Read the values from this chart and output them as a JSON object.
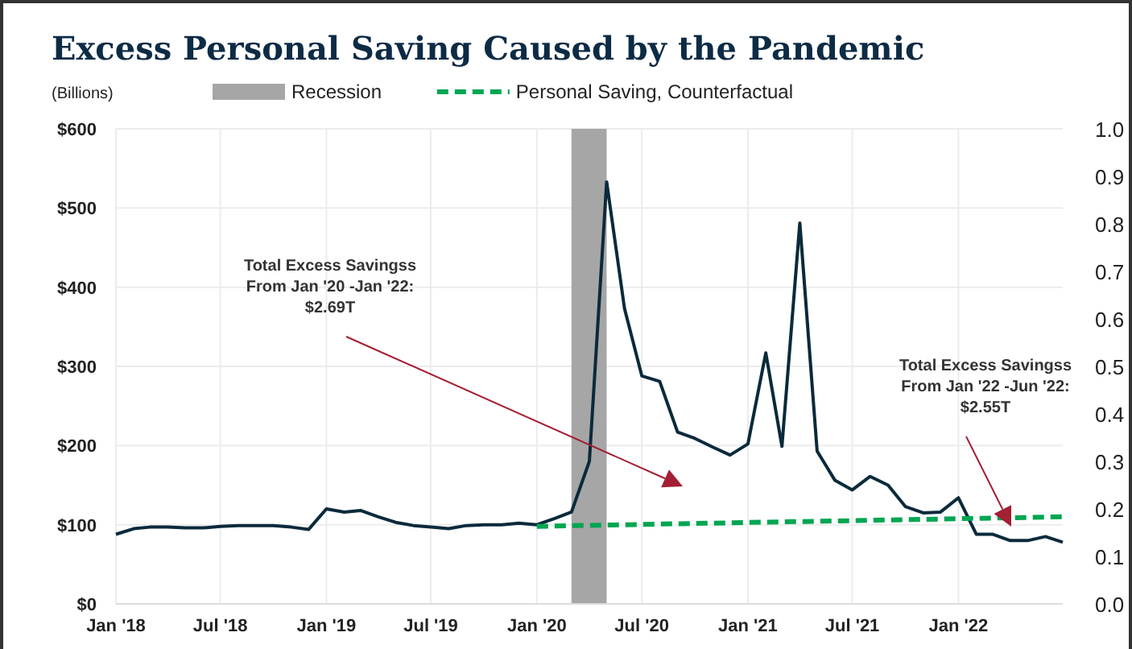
{
  "chart_data": {
    "type": "line",
    "title": "Excess Personal Saving Caused by the Pandemic",
    "ylabel": "(Billions)",
    "x": [
      "2018-01",
      "2018-02",
      "2018-03",
      "2018-04",
      "2018-05",
      "2018-06",
      "2018-07",
      "2018-08",
      "2018-09",
      "2018-10",
      "2018-11",
      "2018-12",
      "2019-01",
      "2019-02",
      "2019-03",
      "2019-04",
      "2019-05",
      "2019-06",
      "2019-07",
      "2019-08",
      "2019-09",
      "2019-10",
      "2019-11",
      "2019-12",
      "2020-01",
      "2020-02",
      "2020-03",
      "2020-04",
      "2020-05",
      "2020-06",
      "2020-07",
      "2020-08",
      "2020-09",
      "2020-10",
      "2020-11",
      "2020-12",
      "2021-01",
      "2021-02",
      "2021-03",
      "2021-04",
      "2021-05",
      "2021-06",
      "2021-07",
      "2021-08",
      "2021-09",
      "2021-10",
      "2021-11",
      "2021-12",
      "2022-01",
      "2022-02",
      "2022-03",
      "2022-04",
      "2022-05",
      "2022-06",
      "2022-07"
    ],
    "series": [
      {
        "color": "#0b2a3c",
        "line_style": "solid",
        "values": [
          88,
          95,
          97,
          97,
          96,
          96,
          98,
          99,
          99,
          99,
          97,
          94,
          120,
          116,
          118,
          110,
          103,
          99,
          97,
          95,
          99,
          100,
          100,
          102,
          100,
          108,
          116,
          180,
          533,
          373,
          288,
          281,
          217,
          209,
          198,
          188,
          202,
          317,
          199,
          481,
          193,
          156,
          144,
          161,
          150,
          123,
          115,
          116,
          134,
          88,
          88,
          80,
          80,
          85,
          78
        ]
      },
      {
        "name": "Personal Saving, Counterfactual",
        "color": "#00a651",
        "line_style": "dashed",
        "x": [
          "2020-01",
          "2022-07"
        ],
        "values": [
          98,
          110
        ]
      }
    ],
    "xlim": [
      "2018-01",
      "2022-07"
    ],
    "xticks": [
      {
        "value": "2018-01",
        "label": "Jan '18"
      },
      {
        "value": "2018-07",
        "label": "Jul '18"
      },
      {
        "value": "2019-01",
        "label": "Jan '19"
      },
      {
        "value": "2019-07",
        "label": "Jul '19"
      },
      {
        "value": "2020-01",
        "label": "Jan '20"
      },
      {
        "value": "2020-07",
        "label": "Jul '20"
      },
      {
        "value": "2021-01",
        "label": "Jan '21"
      },
      {
        "value": "2021-07",
        "label": "Jul '21"
      },
      {
        "value": "2022-01",
        "label": "Jan '22"
      }
    ],
    "ylim": [
      0,
      600
    ],
    "yticks": [
      {
        "value": 0,
        "label": "$0"
      },
      {
        "value": 100,
        "label": "$100"
      },
      {
        "value": 200,
        "label": "$200"
      },
      {
        "value": 300,
        "label": "$300"
      },
      {
        "value": 400,
        "label": "$400"
      },
      {
        "value": 500,
        "label": "$500"
      },
      {
        "value": 600,
        "label": "$600"
      }
    ],
    "y2lim": [
      0,
      1
    ],
    "y2ticks": [
      {
        "value": 0,
        "label": "0.0"
      },
      {
        "value": 0.1,
        "label": "0.1"
      },
      {
        "value": 0.2,
        "label": "0.2"
      },
      {
        "value": 0.3,
        "label": "0.3"
      },
      {
        "value": 0.4,
        "label": "0.4"
      },
      {
        "value": 0.5,
        "label": "0.5"
      },
      {
        "value": 0.6,
        "label": "0.6"
      },
      {
        "value": 0.7,
        "label": "0.7"
      },
      {
        "value": 0.8,
        "label": "0.8"
      },
      {
        "value": 0.9,
        "label": "0.9"
      },
      {
        "value": 1,
        "label": "1.0"
      }
    ],
    "bands": [
      {
        "axis": "x",
        "from": "2020-03",
        "to": "2020-05",
        "label": "Recession",
        "color": "#a6a6a6"
      }
    ],
    "annotations": [
      "Total Excess Savingss\nFrom Jan '20 -Jan '22:\n$2.69T",
      "Total Excess Savingss\nFrom Jan '22 -Jun '22:\n$2.55T"
    ],
    "grid": true,
    "legend": "top",
    "marker": "none"
  }
}
